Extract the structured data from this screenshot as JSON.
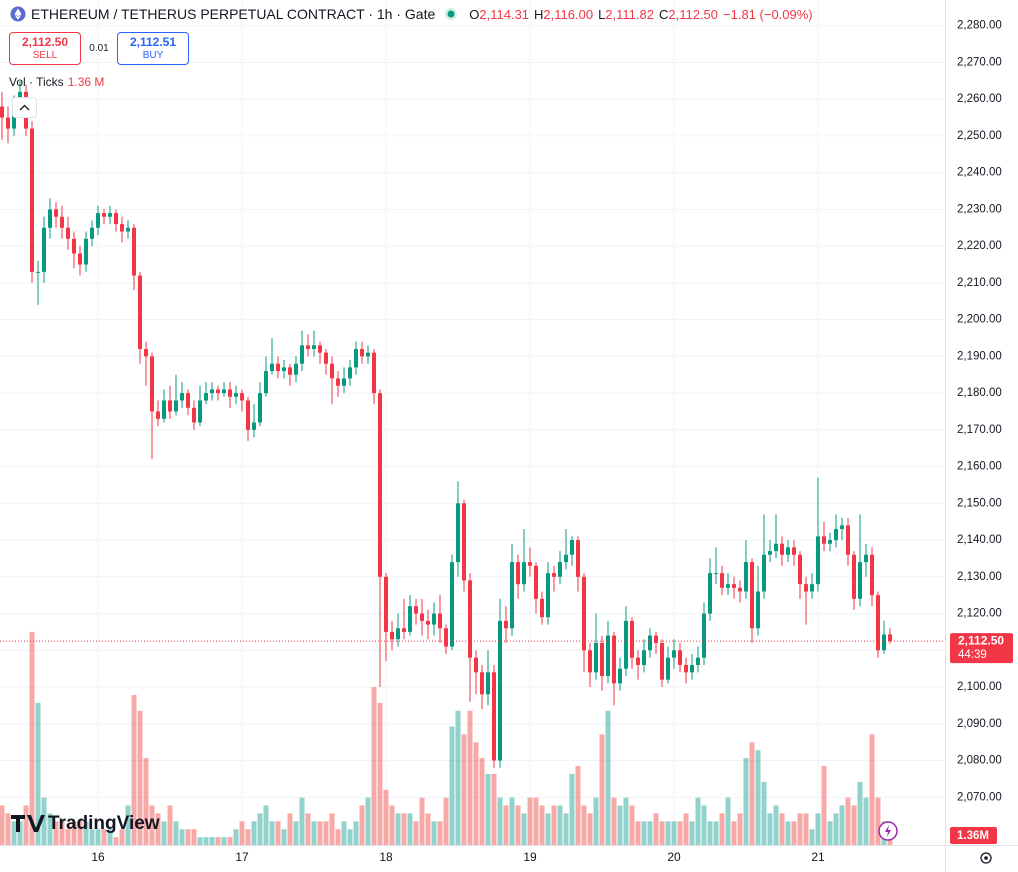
{
  "chart_data": {
    "type": "candlestick",
    "title": "ETHEREUM / TETHERUS PERPETUAL CONTRACT · 1h · Gate",
    "ohlc_legend": [
      {
        "key": "O",
        "value": "2,114.31"
      },
      {
        "key": "H",
        "value": "2,116.00"
      },
      {
        "key": "L",
        "value": "2,111.82"
      },
      {
        "key": "C",
        "value": "2,112.50"
      }
    ],
    "change": "−1.81 (−0.09%)",
    "sell": {
      "price": "2,112.50",
      "label": "SELL"
    },
    "spread": "0.01",
    "buy": {
      "price": "2,112.51",
      "label": "BUY"
    },
    "volume_legend": {
      "label": "Vol · Ticks",
      "value": "1.36 M"
    },
    "last_price_label": "2,112.50",
    "countdown": "44:39",
    "volume_axis_label": "1.36M",
    "brand": "TradingView",
    "open": [
      2258,
      2255,
      2252,
      2258,
      2262,
      2252,
      2213,
      2213,
      2225,
      2230,
      2228,
      2225,
      2222,
      2218,
      2215,
      2222,
      2225,
      2229,
      2228,
      2229,
      2226,
      2224,
      2225,
      2212,
      2192,
      2190,
      2175,
      2173,
      2178,
      2175,
      2178,
      2180,
      2176,
      2172,
      2178,
      2180,
      2181,
      2180,
      2181,
      2179,
      2180,
      2178,
      2170,
      2172,
      2180,
      2186,
      2188,
      2186,
      2187,
      2185,
      2188,
      2193,
      2192,
      2193,
      2191,
      2188,
      2184,
      2182,
      2184,
      2187,
      2192,
      2190,
      2191,
      2180,
      2130,
      2115,
      2113,
      2116,
      2115,
      2122,
      2120,
      2118,
      2117,
      2120,
      2116,
      2111,
      2134,
      2150,
      2129,
      2108,
      2104,
      2098,
      2104,
      2080,
      2118,
      2116,
      2134,
      2128,
      2134,
      2133,
      2124,
      2119,
      2131,
      2130,
      2134,
      2136,
      2140,
      2130,
      2110,
      2104,
      2112,
      2103,
      2114,
      2101,
      2105,
      2118,
      2108,
      2106,
      2110,
      2114,
      2112,
      2102,
      2108,
      2110,
      2106,
      2104,
      2106,
      2108,
      2120,
      2131,
      2131,
      2127,
      2128,
      2127,
      2126,
      2134,
      2116,
      2126,
      2136,
      2137,
      2139,
      2136,
      2138,
      2136,
      2128,
      2126,
      2128,
      2141,
      2139,
      2140,
      2143,
      2144,
      2136,
      2124,
      2134,
      2136,
      2125,
      2110,
      2114.31
    ],
    "high": [
      2262,
      2258,
      2261,
      2265,
      2264,
      2254,
      2216,
      2228,
      2233,
      2232,
      2231,
      2228,
      2224,
      2220,
      2224,
      2227,
      2231,
      2230,
      2231,
      2230,
      2228,
      2227,
      2226,
      2213,
      2194,
      2191,
      2178,
      2181,
      2182,
      2185,
      2183,
      2181,
      2178,
      2182,
      2183,
      2183,
      2182,
      2183,
      2183,
      2182,
      2181,
      2179,
      2177,
      2183,
      2190,
      2195,
      2190,
      2189,
      2188,
      2190,
      2197,
      2196,
      2197,
      2194,
      2192,
      2190,
      2186,
      2187,
      2189,
      2194,
      2194,
      2193,
      2192,
      2181,
      2131,
      2118,
      2120,
      2124,
      2125,
      2124,
      2124,
      2121,
      2123,
      2125,
      2117,
      2136,
      2156,
      2151,
      2131,
      2110,
      2106,
      2110,
      2106,
      2124,
      2122,
      2139,
      2136,
      2143,
      2138,
      2134,
      2126,
      2134,
      2133,
      2137,
      2143,
      2141,
      2141,
      2131,
      2112,
      2120,
      2114,
      2118,
      2115,
      2108,
      2122,
      2119,
      2110,
      2113,
      2116,
      2115,
      2113,
      2111,
      2113,
      2112,
      2108,
      2109,
      2111,
      2123,
      2135,
      2138,
      2133,
      2131,
      2130,
      2129,
      2140,
      2135,
      2133,
      2147,
      2140,
      2147,
      2141,
      2140,
      2140,
      2137,
      2130,
      2131,
      2157,
      2145,
      2142,
      2147,
      2146,
      2146,
      2137,
      2147,
      2139,
      2138,
      2126,
      2118,
      2116
    ],
    "low": [
      2249,
      2248,
      2250,
      2256,
      2250,
      2210,
      2204,
      2210,
      2222,
      2225,
      2222,
      2219,
      2214,
      2212,
      2213,
      2220,
      2223,
      2226,
      2226,
      2224,
      2221,
      2222,
      2208,
      2188,
      2182,
      2162,
      2171,
      2172,
      2173,
      2174,
      2176,
      2174,
      2170,
      2171,
      2177,
      2178,
      2178,
      2179,
      2176,
      2177,
      2175,
      2167,
      2168,
      2171,
      2179,
      2185,
      2184,
      2184,
      2182,
      2183,
      2186,
      2190,
      2190,
      2188,
      2185,
      2177,
      2179,
      2180,
      2182,
      2185,
      2188,
      2188,
      2177,
      2100,
      2107,
      2110,
      2111,
      2113,
      2114,
      2117,
      2114,
      2113,
      2114,
      2112,
      2109,
      2110,
      2130,
      2126,
      2096,
      2098,
      2094,
      2095,
      2078,
      2078,
      2112,
      2114,
      2124,
      2126,
      2130,
      2120,
      2117,
      2117,
      2126,
      2128,
      2132,
      2133,
      2126,
      2104,
      2100,
      2102,
      2099,
      2101,
      2095,
      2099,
      2103,
      2105,
      2102,
      2104,
      2108,
      2109,
      2100,
      2101,
      2105,
      2104,
      2101,
      2102,
      2104,
      2106,
      2118,
      2128,
      2125,
      2125,
      2124,
      2123,
      2124,
      2112,
      2114,
      2124,
      2134,
      2135,
      2133,
      2134,
      2133,
      2124,
      2117,
      2124,
      2126,
      2137,
      2137,
      2138,
      2140,
      2133,
      2121,
      2122,
      2130,
      2122,
      2108,
      2109,
      2111.82
    ],
    "close": [
      2255,
      2252,
      2258,
      2262,
      2252,
      2213,
      2213,
      2225,
      2230,
      2228,
      2225,
      2222,
      2218,
      2215,
      2222,
      2225,
      2229,
      2228,
      2229,
      2226,
      2224,
      2225,
      2212,
      2192,
      2190,
      2175,
      2173,
      2178,
      2175,
      2178,
      2180,
      2176,
      2172,
      2178,
      2180,
      2181,
      2180,
      2181,
      2179,
      2180,
      2178,
      2170,
      2172,
      2180,
      2186,
      2188,
      2186,
      2187,
      2185,
      2188,
      2193,
      2192,
      2193,
      2191,
      2188,
      2184,
      2182,
      2184,
      2187,
      2192,
      2190,
      2191,
      2180,
      2130,
      2115,
      2113,
      2116,
      2115,
      2122,
      2120,
      2118,
      2117,
      2120,
      2116,
      2111,
      2134,
      2150,
      2129,
      2108,
      2104,
      2098,
      2104,
      2080,
      2118,
      2116,
      2134,
      2128,
      2134,
      2133,
      2124,
      2119,
      2131,
      2130,
      2134,
      2136,
      2140,
      2130,
      2110,
      2104,
      2112,
      2103,
      2114,
      2101,
      2105,
      2118,
      2108,
      2106,
      2110,
      2114,
      2112,
      2102,
      2108,
      2110,
      2106,
      2104,
      2106,
      2108,
      2120,
      2131,
      2131,
      2127,
      2128,
      2127,
      2126,
      2134,
      2116,
      2126,
      2136,
      2137,
      2139,
      2136,
      2138,
      2136,
      2128,
      2126,
      2128,
      2141,
      2139,
      2140,
      2143,
      2144,
      2136,
      2124,
      2134,
      2136,
      2125,
      2110,
      2114.31,
      2112.5
    ],
    "volume": [
      0.5,
      0.4,
      0.3,
      0.3,
      0.5,
      2.7,
      1.8,
      0.6,
      0.4,
      0.3,
      0.3,
      0.2,
      0.3,
      0.3,
      0.3,
      0.2,
      0.2,
      0.2,
      0.2,
      0.1,
      0.2,
      0.5,
      1.9,
      1.7,
      1.1,
      0.5,
      0.4,
      0.3,
      0.5,
      0.3,
      0.2,
      0.2,
      0.2,
      0.1,
      0.1,
      0.1,
      0.1,
      0.1,
      0.1,
      0.2,
      0.3,
      0.2,
      0.3,
      0.4,
      0.5,
      0.3,
      0.3,
      0.2,
      0.4,
      0.3,
      0.6,
      0.4,
      0.3,
      0.3,
      0.3,
      0.4,
      0.2,
      0.3,
      0.2,
      0.3,
      0.5,
      0.6,
      2.0,
      1.8,
      0.7,
      0.5,
      0.4,
      0.4,
      0.4,
      0.3,
      0.6,
      0.4,
      0.3,
      0.3,
      0.6,
      1.5,
      1.7,
      1.4,
      1.7,
      1.3,
      1.1,
      0.9,
      0.9,
      0.6,
      0.5,
      0.6,
      0.5,
      0.4,
      0.6,
      0.6,
      0.5,
      0.4,
      0.5,
      0.5,
      0.4,
      0.9,
      1.0,
      0.5,
      0.4,
      0.6,
      1.4,
      1.7,
      0.6,
      0.5,
      0.6,
      0.5,
      0.3,
      0.3,
      0.3,
      0.4,
      0.3,
      0.3,
      0.3,
      0.3,
      0.4,
      0.3,
      0.6,
      0.5,
      0.3,
      0.3,
      0.4,
      0.6,
      0.3,
      0.4,
      1.1,
      1.3,
      1.2,
      0.8,
      0.4,
      0.5,
      0.4,
      0.3,
      0.3,
      0.4,
      0.4,
      0.2,
      0.4,
      1.0,
      0.3,
      0.4,
      0.5,
      0.6,
      0.5,
      0.8,
      0.6,
      1.4,
      0.6,
      0.3,
      0.2
    ],
    "ylim": [
      2057,
      2287
    ],
    "yticks": [
      {
        "value": 2280,
        "label": "2,280.00"
      },
      {
        "value": 2270,
        "label": "2,270.00"
      },
      {
        "value": 2260,
        "label": "2,260.00"
      },
      {
        "value": 2250,
        "label": "2,250.00"
      },
      {
        "value": 2240,
        "label": "2,240.00"
      },
      {
        "value": 2230,
        "label": "2,230.00"
      },
      {
        "value": 2220,
        "label": "2,220.00"
      },
      {
        "value": 2210,
        "label": "2,210.00"
      },
      {
        "value": 2200,
        "label": "2,200.00"
      },
      {
        "value": 2190,
        "label": "2,190.00"
      },
      {
        "value": 2180,
        "label": "2,180.00"
      },
      {
        "value": 2170,
        "label": "2,170.00"
      },
      {
        "value": 2160,
        "label": "2,160.00"
      },
      {
        "value": 2150,
        "label": "2,150.00"
      },
      {
        "value": 2140,
        "label": "2,140.00"
      },
      {
        "value": 2130,
        "label": "2,130.00"
      },
      {
        "value": 2120,
        "label": "2,120.00"
      },
      {
        "value": 2110,
        "label": "2,110.00"
      },
      {
        "value": 2100,
        "label": "2,100.00"
      },
      {
        "value": 2090,
        "label": "2,090.00"
      },
      {
        "value": 2080,
        "label": "2,080.00"
      },
      {
        "value": 2070,
        "label": "2,070.00"
      }
    ],
    "xticks": [
      16,
      17,
      18,
      19,
      20,
      21
    ],
    "volume_lim": [
      0,
      10.7
    ],
    "up_color": "#089981",
    "down_color": "#f23645",
    "volume_up_color": "#26a69a",
    "volume_down_color": "#ef5350",
    "grid": true
  }
}
